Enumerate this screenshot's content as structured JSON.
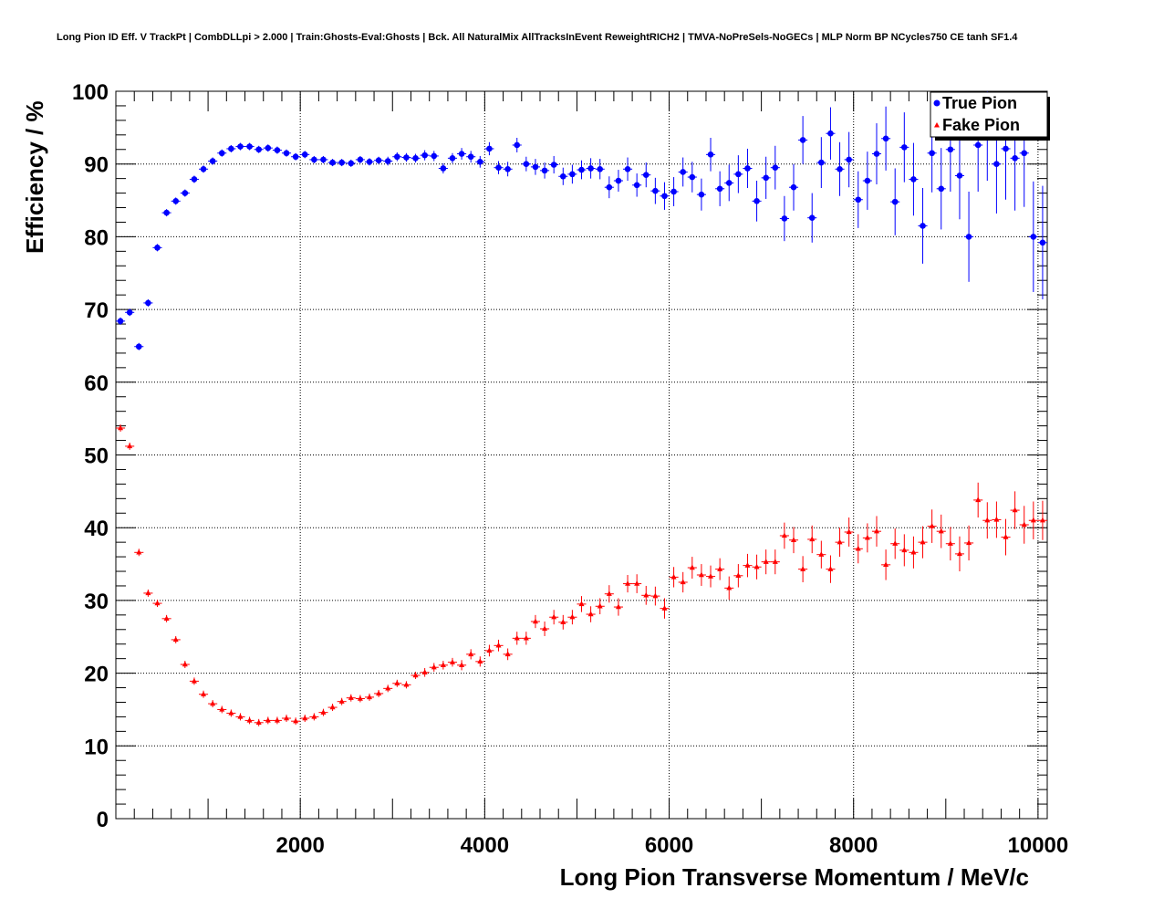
{
  "chart_data": {
    "type": "scatter",
    "title": "Long Pion ID Eff. V TrackPt | CombDLLpi > 2.000 | Train:Ghosts-Eval:Ghosts | Bck. All NaturalMix AllTracksInEvent ReweightRICH2 | TMVA-NoPreSels-NoGECs | MLP Norm BP NCycles750 CE tanh SF1.4",
    "xlabel": "Long Pion Transverse Momentum / MeV/c",
    "ylabel": "Efficiency / %",
    "xlim": [
      0,
      10100
    ],
    "ylim": [
      0,
      100
    ],
    "x_ticks": [
      2000,
      4000,
      6000,
      8000,
      10000
    ],
    "x_tick_labels": [
      "2000",
      "4000",
      "6000",
      "8000",
      "10000"
    ],
    "y_ticks": [
      0,
      10,
      20,
      30,
      40,
      50,
      60,
      70,
      80,
      90,
      100
    ],
    "y_tick_labels": [
      "0",
      "10",
      "20",
      "30",
      "40",
      "50",
      "60",
      "70",
      "80",
      "90",
      "100"
    ],
    "grid": true,
    "legend_position": "top-right",
    "series": [
      {
        "name": "True Pion",
        "color": "#0000ff",
        "marker": "circle",
        "x": [
          50,
          150,
          250,
          350,
          450,
          550,
          650,
          750,
          850,
          950,
          1050,
          1150,
          1250,
          1350,
          1450,
          1550,
          1650,
          1750,
          1850,
          1950,
          2050,
          2150,
          2250,
          2350,
          2450,
          2550,
          2650,
          2750,
          2850,
          2950,
          3050,
          3150,
          3250,
          3350,
          3450,
          3550,
          3650,
          3750,
          3850,
          3950,
          4050,
          4150,
          4250,
          4350,
          4450,
          4550,
          4650,
          4750,
          4850,
          4950,
          5050,
          5150,
          5250,
          5350,
          5450,
          5550,
          5650,
          5750,
          5850,
          5950,
          6050,
          6150,
          6250,
          6350,
          6450,
          6550,
          6650,
          6750,
          6850,
          6950,
          7050,
          7150,
          7250,
          7350,
          7450,
          7550,
          7650,
          7750,
          7850,
          7950,
          8050,
          8150,
          8250,
          8350,
          8450,
          8550,
          8650,
          8750,
          8850,
          8950,
          9050,
          9150,
          9250,
          9350,
          9450,
          9550,
          9650,
          9750,
          9850,
          9950,
          10050
        ],
        "y": [
          68.4,
          69.6,
          64.9,
          70.9,
          78.5,
          83.3,
          84.9,
          86.0,
          87.9,
          89.3,
          90.4,
          91.5,
          92.1,
          92.4,
          92.4,
          92.0,
          92.2,
          91.9,
          91.5,
          91.0,
          91.3,
          90.6,
          90.6,
          90.2,
          90.2,
          90.1,
          90.6,
          90.3,
          90.5,
          90.4,
          91.0,
          90.9,
          90.8,
          91.2,
          91.1,
          89.4,
          90.8,
          91.4,
          91.0,
          90.3,
          92.1,
          89.5,
          89.3,
          92.6,
          90.0,
          89.6,
          89.1,
          89.9,
          88.3,
          88.6,
          89.2,
          89.4,
          89.3,
          86.8,
          87.7,
          89.3,
          87.1,
          88.5,
          86.3,
          85.6,
          86.2,
          88.9,
          88.2,
          85.8,
          91.3,
          86.6,
          87.4,
          88.6,
          89.4,
          84.9,
          88.1,
          89.5,
          82.5,
          86.8,
          93.3,
          82.6,
          90.2,
          94.2,
          89.3,
          90.6,
          85.1,
          87.7,
          91.4,
          93.5,
          84.8,
          92.3,
          87.9,
          81.5,
          91.5,
          86.6,
          92.0,
          88.4,
          80.0,
          92.6,
          94.3,
          90.0,
          92.1,
          90.8,
          91.5,
          80.0,
          79.2
        ],
        "y_err": [
          0.5,
          0.5,
          0.5,
          0.5,
          0.5,
          0.5,
          0.5,
          0.5,
          0.5,
          0.5,
          0.5,
          0.5,
          0.5,
          0.5,
          0.5,
          0.5,
          0.5,
          0.5,
          0.5,
          0.5,
          0.5,
          0.5,
          0.5,
          0.5,
          0.5,
          0.5,
          0.5,
          0.5,
          0.5,
          0.6,
          0.6,
          0.6,
          0.6,
          0.7,
          0.7,
          0.7,
          0.7,
          0.8,
          0.8,
          0.8,
          0.9,
          0.9,
          1.0,
          1.0,
          1.0,
          1.1,
          1.1,
          1.2,
          1.2,
          1.3,
          1.3,
          1.4,
          1.4,
          1.5,
          1.5,
          1.6,
          1.6,
          1.7,
          1.8,
          1.9,
          2.0,
          2.0,
          2.1,
          2.2,
          2.3,
          2.4,
          2.5,
          2.6,
          2.7,
          2.8,
          2.9,
          3.0,
          3.1,
          3.2,
          3.3,
          3.4,
          3.5,
          3.6,
          3.7,
          3.8,
          3.9,
          4.0,
          4.2,
          4.4,
          4.6,
          4.8,
          5.0,
          5.2,
          5.4,
          5.6,
          5.8,
          6.0,
          6.2,
          6.4,
          6.6,
          6.8,
          7.0,
          7.2,
          7.4,
          7.6,
          7.8
        ]
      },
      {
        "name": "Fake Pion",
        "color": "#ff0000",
        "marker": "triangle",
        "x": [
          50,
          150,
          250,
          350,
          450,
          550,
          650,
          750,
          850,
          950,
          1050,
          1150,
          1250,
          1350,
          1450,
          1550,
          1650,
          1750,
          1850,
          1950,
          2050,
          2150,
          2250,
          2350,
          2450,
          2550,
          2650,
          2750,
          2850,
          2950,
          3050,
          3150,
          3250,
          3350,
          3450,
          3550,
          3650,
          3750,
          3850,
          3950,
          4050,
          4150,
          4250,
          4350,
          4450,
          4550,
          4650,
          4750,
          4850,
          4950,
          5050,
          5150,
          5250,
          5350,
          5450,
          5550,
          5650,
          5750,
          5850,
          5950,
          6050,
          6150,
          6250,
          6350,
          6450,
          6550,
          6650,
          6750,
          6850,
          6950,
          7050,
          7150,
          7250,
          7350,
          7450,
          7550,
          7650,
          7750,
          7850,
          7950,
          8050,
          8150,
          8250,
          8350,
          8450,
          8550,
          8650,
          8750,
          8850,
          8950,
          9050,
          9150,
          9250,
          9350,
          9450,
          9550,
          9650,
          9750,
          9850,
          9950,
          10050
        ],
        "y": [
          53.7,
          51.2,
          36.6,
          31.0,
          29.6,
          27.5,
          24.6,
          21.2,
          18.9,
          17.1,
          15.8,
          15.0,
          14.5,
          14.0,
          13.5,
          13.2,
          13.5,
          13.5,
          13.8,
          13.4,
          13.8,
          14.0,
          14.6,
          15.3,
          16.1,
          16.6,
          16.5,
          16.7,
          17.2,
          17.9,
          18.6,
          18.4,
          19.7,
          20.1,
          20.8,
          21.1,
          21.5,
          21.1,
          22.6,
          21.6,
          23.1,
          23.8,
          22.6,
          24.8,
          24.8,
          27.1,
          26.1,
          27.7,
          27.0,
          27.7,
          29.5,
          28.1,
          29.2,
          30.9,
          29.1,
          32.3,
          32.3,
          30.7,
          30.6,
          28.9,
          33.2,
          32.5,
          34.5,
          33.5,
          33.3,
          34.3,
          31.7,
          33.4,
          34.8,
          34.6,
          35.3,
          35.3,
          38.9,
          38.3,
          34.3,
          38.4,
          36.3,
          34.3,
          38.0,
          39.4,
          37.1,
          38.6,
          39.5,
          34.9,
          37.8,
          36.9,
          36.6,
          38.0,
          40.2,
          39.5,
          37.8,
          36.4,
          37.9,
          43.8,
          41.0,
          41.1,
          38.7,
          42.4,
          40.4,
          41.0,
          41.0
        ],
        "y_err": [
          0.5,
          0.5,
          0.5,
          0.5,
          0.5,
          0.5,
          0.5,
          0.5,
          0.5,
          0.5,
          0.5,
          0.5,
          0.5,
          0.5,
          0.5,
          0.5,
          0.5,
          0.5,
          0.5,
          0.5,
          0.5,
          0.5,
          0.5,
          0.5,
          0.5,
          0.5,
          0.5,
          0.5,
          0.5,
          0.5,
          0.5,
          0.5,
          0.5,
          0.6,
          0.6,
          0.6,
          0.6,
          0.7,
          0.7,
          0.7,
          0.8,
          0.8,
          0.8,
          0.9,
          0.9,
          0.9,
          1.0,
          1.0,
          1.0,
          1.0,
          1.1,
          1.1,
          1.1,
          1.2,
          1.2,
          1.2,
          1.3,
          1.3,
          1.3,
          1.4,
          1.4,
          1.4,
          1.5,
          1.5,
          1.5,
          1.5,
          1.6,
          1.6,
          1.6,
          1.7,
          1.7,
          1.7,
          1.8,
          1.8,
          1.8,
          1.9,
          1.9,
          1.9,
          2.0,
          2.0,
          2.0,
          2.0,
          2.1,
          2.1,
          2.1,
          2.2,
          2.2,
          2.2,
          2.3,
          2.3,
          2.3,
          2.4,
          2.4,
          2.4,
          2.5,
          2.5,
          2.5,
          2.6,
          2.6,
          2.6,
          2.7
        ]
      }
    ]
  }
}
